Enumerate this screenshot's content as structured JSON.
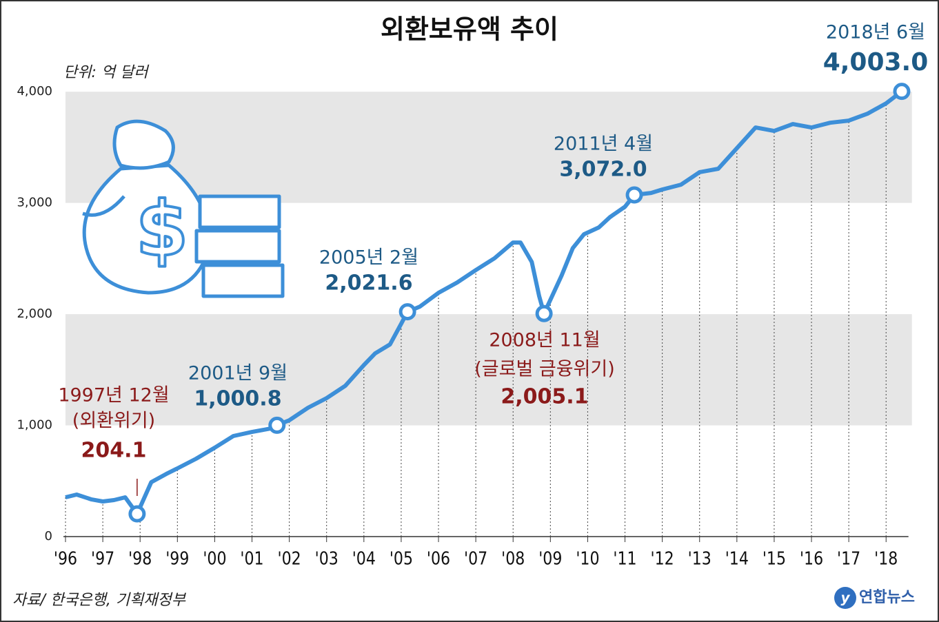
{
  "chart_data": {
    "type": "line",
    "title": "외환보유액 추이",
    "unit": "단위: 억 달러",
    "source": "자료/ 한국은행, 기획재정부",
    "logo": "연합뉴스",
    "xlim": [
      1995.9,
      2018.6
    ],
    "ylim": [
      0,
      4100
    ],
    "xticks": [
      {
        "value": 1996,
        "label": "'96"
      },
      {
        "value": 1997,
        "label": "'97"
      },
      {
        "value": 1998,
        "label": "'98"
      },
      {
        "value": 1999,
        "label": "'99"
      },
      {
        "value": 2000,
        "label": "'00"
      },
      {
        "value": 2001,
        "label": "'01"
      },
      {
        "value": 2002,
        "label": "'02"
      },
      {
        "value": 2003,
        "label": "'03"
      },
      {
        "value": 2004,
        "label": "'04"
      },
      {
        "value": 2005,
        "label": "'05"
      },
      {
        "value": 2006,
        "label": "'06"
      },
      {
        "value": 2007,
        "label": "'07"
      },
      {
        "value": 2008,
        "label": "'08"
      },
      {
        "value": 2009,
        "label": "'09"
      },
      {
        "value": 2010,
        "label": "'10"
      },
      {
        "value": 2011,
        "label": "'11"
      },
      {
        "value": 2012,
        "label": "'12"
      },
      {
        "value": 2013,
        "label": "'13"
      },
      {
        "value": 2014,
        "label": "'14"
      },
      {
        "value": 2015,
        "label": "'15"
      },
      {
        "value": 2016,
        "label": "'16"
      },
      {
        "value": 2017,
        "label": "'17"
      },
      {
        "value": 2018,
        "label": "'18"
      }
    ],
    "yticks": [
      0,
      {
        "value": 1000,
        "label": "1,000"
      },
      {
        "value": 2000,
        "label": "2,000"
      },
      {
        "value": 3000,
        "label": "3,000"
      },
      {
        "value": 4000,
        "label": "4,000"
      }
    ],
    "grid": true,
    "series": [
      {
        "color": "#3d8fd8",
        "x": [
          1996.0,
          1996.3,
          1996.7,
          1997.0,
          1997.3,
          1997.6,
          1997.92,
          1998.3,
          1998.7,
          1999.0,
          1999.5,
          2000.0,
          2000.5,
          2001.0,
          2001.5,
          2001.67,
          2002.0,
          2002.5,
          2003.0,
          2003.5,
          2004.0,
          2004.3,
          2004.7,
          2005.0,
          2005.17,
          2005.5,
          2006.0,
          2006.5,
          2007.0,
          2007.5,
          2008.0,
          2008.2,
          2008.5,
          2008.7,
          2008.83,
          2009.3,
          2009.6,
          2009.9,
          2010.3,
          2010.6,
          2011.0,
          2011.25,
          2011.7,
          2012.0,
          2012.5,
          2013.0,
          2013.5,
          2014.0,
          2014.5,
          2015.0,
          2015.5,
          2016.0,
          2016.5,
          2017.0,
          2017.5,
          2018.0,
          2018.42
        ],
        "values": [
          353,
          378,
          334,
          316,
          328,
          353,
          204.1,
          489,
          563,
          613,
          700,
          799,
          904,
          941,
          972,
          1000.8,
          1046,
          1158,
          1245,
          1356,
          1542,
          1647,
          1728,
          1913,
          2021.6,
          2068,
          2192,
          2285,
          2396,
          2502,
          2644,
          2644,
          2470,
          2161,
          2005.1,
          2347,
          2594,
          2718,
          2780,
          2873,
          2966,
          3072.0,
          3090,
          3121,
          3164,
          3276,
          3307,
          3492,
          3678,
          3647,
          3709,
          3678,
          3721,
          3740,
          3802,
          3895,
          4003.0
        ]
      }
    ],
    "annotations": [
      {
        "date": "1997년 12월",
        "note": "(외환위기)",
        "x": 1997.92,
        "value": 204.1,
        "value_label": "204.1",
        "color": "#8b1a1a"
      },
      {
        "date": "2001년 9월",
        "x": 2001.67,
        "value": 1000.8,
        "value_label": "1,000.8",
        "color": "#1d5a86"
      },
      {
        "date": "2005년 2월",
        "x": 2005.17,
        "value": 2021.6,
        "value_label": "2,021.6",
        "color": "#1d5a86"
      },
      {
        "date": "2008년 11월",
        "note": "(글로벌 금융위기)",
        "x": 2008.83,
        "value": 2005.1,
        "value_label": "2,005.1",
        "color": "#8b1a1a"
      },
      {
        "date": "2011년 4월",
        "x": 2011.25,
        "value": 3072.0,
        "value_label": "3,072.0",
        "color": "#1d5a86"
      },
      {
        "date": "2018년 6월",
        "x": 2018.42,
        "value": 4003.0,
        "value_label": "4,003.0",
        "color": "#1d5a86"
      }
    ]
  }
}
